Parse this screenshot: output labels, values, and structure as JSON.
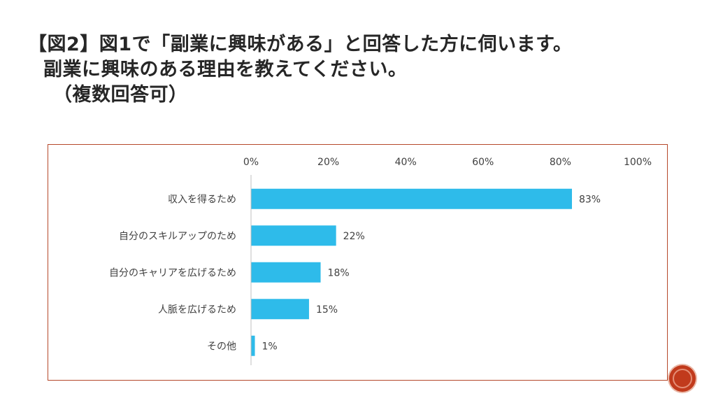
{
  "title": {
    "line1": "【図2】図1で「副業に興味がある」と回答した方に伺います。",
    "line2": "副業に興味のある理由を教えてください。",
    "line3": "（複数回答可）"
  },
  "accent_color": "#c13a1c",
  "chart_data": {
    "type": "bar",
    "orientation": "horizontal",
    "categories": [
      "収入を得るため",
      "自分のスキルアップのため",
      "自分のキャリアを広げるため",
      "人脈を広げるため",
      "その他"
    ],
    "values": [
      83,
      22,
      18,
      15,
      1
    ],
    "value_labels": [
      "83%",
      "22%",
      "18%",
      "15%",
      "1%"
    ],
    "xlim": [
      0,
      100
    ],
    "ticks": [
      0,
      20,
      40,
      60,
      80,
      100
    ],
    "tick_labels": [
      "0%",
      "20%",
      "40%",
      "60%",
      "80%",
      "100%"
    ],
    "axis_position": "top",
    "grid": false,
    "bar_color": "#2ebbea"
  }
}
